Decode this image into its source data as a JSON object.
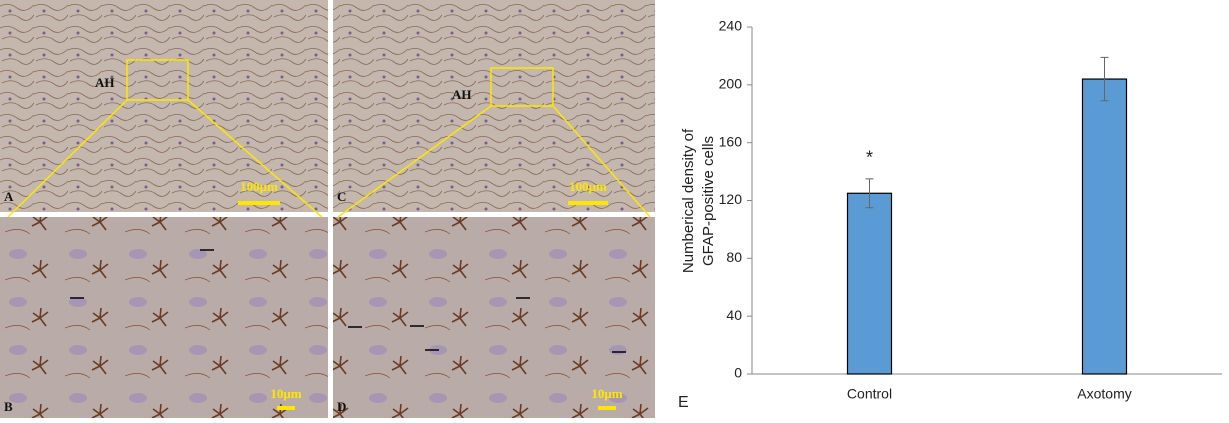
{
  "panels": [
    {
      "label": "A",
      "region": "AH",
      "scale": "100μm"
    },
    {
      "label": "B",
      "scale": "10μm"
    },
    {
      "label": "C",
      "region": "AH",
      "scale": "100μm"
    },
    {
      "label": "D",
      "scale": "10μm"
    }
  ],
  "chart_data": {
    "type": "bar",
    "panel_label": "E",
    "ylabel": [
      "Numberical density of",
      "GFAP-positive cells"
    ],
    "categories": [
      "Control",
      "Axotomy"
    ],
    "values": [
      125,
      204
    ],
    "errors": [
      10,
      15
    ],
    "color": "#5b9bd5",
    "annotation": "*",
    "ylim": [
      0,
      240
    ],
    "yticks": [
      0,
      40,
      80,
      120,
      160,
      200,
      240
    ]
  }
}
